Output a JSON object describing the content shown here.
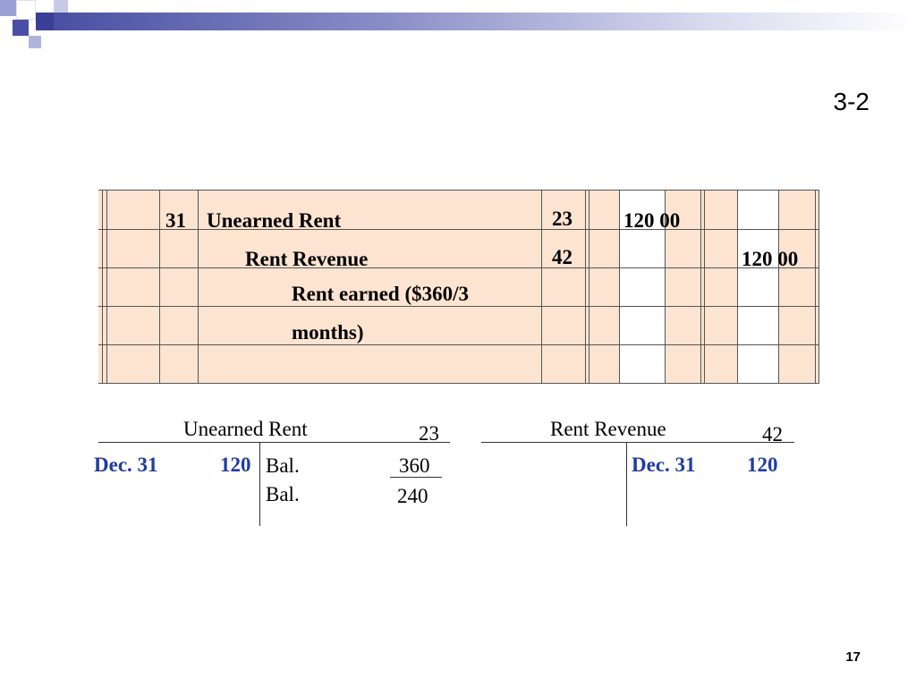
{
  "slide": {
    "number": "3-2",
    "page": "17"
  },
  "journal": {
    "rows": [
      {
        "date": "31",
        "account": "Unearned Rent",
        "ref": "23",
        "debit": "120 00",
        "credit": ""
      },
      {
        "date": "",
        "account": "Rent Revenue",
        "ref": "42",
        "debit": "",
        "credit": "120 00"
      },
      {
        "explanation_line1": "Rent earned ($360/3",
        "explanation_line2": "months)"
      }
    ]
  },
  "t_accounts": [
    {
      "title": "Unearned Rent",
      "number": "23",
      "left_date": "Dec. 31",
      "left_amount": "120",
      "right_label1": "Bal.",
      "right_amount1": "360",
      "right_label2": "Bal.",
      "right_amount2": "240"
    },
    {
      "title": "Rent Revenue",
      "number": "42",
      "right_date": "Dec. 31",
      "right_amount": "120"
    }
  ],
  "colors": {
    "journal_bg": "#fde4d1",
    "highlight_text": "#1f3ca0",
    "header_dark": "#3a3f96"
  }
}
